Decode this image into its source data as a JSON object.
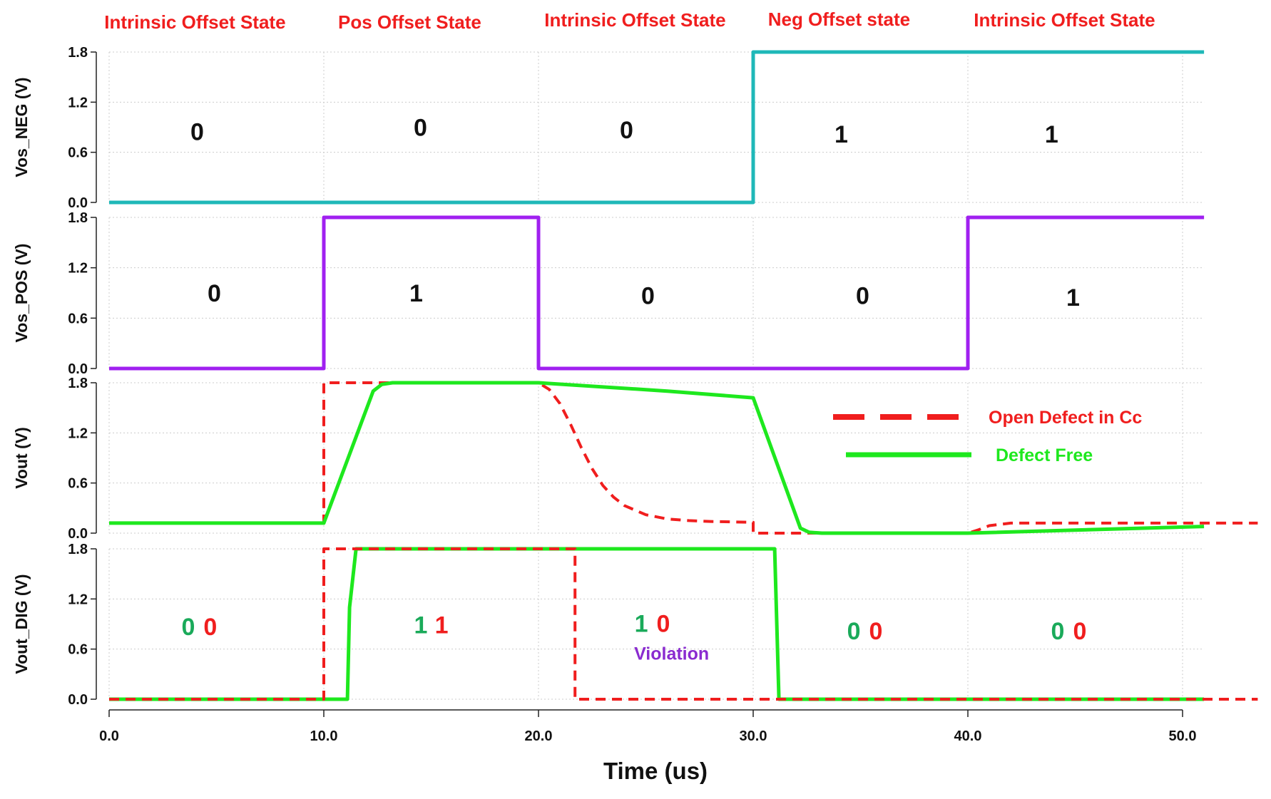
{
  "colors": {
    "vos_neg": "#1FB8B8",
    "vos_pos": "#A020F0",
    "defect_free": "#1EE81E",
    "open_defect": "#F01E1E",
    "state_label": "#F01E1E",
    "violation": "#8A2BD0",
    "digit_green": "#1AAA5A",
    "digit_red": "#F01E1E",
    "grid": "#cccccc"
  },
  "chart_data": {
    "type": "line",
    "xlabel": "Time (us)",
    "xlim": [
      0,
      51
    ],
    "x_ticks": [
      "0.0",
      "10.0",
      "20.0",
      "30.0",
      "40.0",
      "50.0"
    ],
    "x_tick_values": [
      0,
      10,
      20,
      30,
      40,
      50
    ],
    "state_labels": [
      {
        "text": "Intrinsic Offset State",
        "x": 4
      },
      {
        "text": "Pos Offset State",
        "x": 14
      },
      {
        "text": "Intrinsic Offset State",
        "x": 24.5
      },
      {
        "text": "Neg Offset state",
        "x": 34
      },
      {
        "text": "Intrinsic Offset State",
        "x": 44.5
      }
    ],
    "panels": [
      {
        "id": "vos_neg",
        "ylabel": "Vos_NEG (V)",
        "ylim": [
          0,
          1.8
        ],
        "y_ticks": [
          "0.0",
          "0.6",
          "1.2",
          "1.8"
        ],
        "y_tick_values": [
          0,
          0.6,
          1.2,
          1.8
        ],
        "series": [
          {
            "key": "vos_neg",
            "x": [
              0,
              30,
              30,
              51
            ],
            "y": [
              0,
              0,
              1.8,
              1.8
            ]
          }
        ],
        "annotations": [
          {
            "text": "0",
            "x": 4.1,
            "y": 0.85
          },
          {
            "text": "0",
            "x": 14.5,
            "y": 0.9
          },
          {
            "text": "0",
            "x": 24.1,
            "y": 0.87
          },
          {
            "text": "1",
            "x": 34.1,
            "y": 0.82
          },
          {
            "text": "1",
            "x": 43.9,
            "y": 0.82
          }
        ]
      },
      {
        "id": "vos_pos",
        "ylabel": "Vos_POS (V)",
        "ylim": [
          0,
          1.8
        ],
        "y_ticks": [
          "0.0",
          "0.6",
          "1.2",
          "1.8"
        ],
        "y_tick_values": [
          0,
          0.6,
          1.2,
          1.8
        ],
        "series": [
          {
            "key": "vos_pos",
            "x": [
              0,
              10,
              10,
              20,
              20,
              40,
              40,
              51
            ],
            "y": [
              0,
              0,
              1.8,
              1.8,
              0,
              0,
              1.8,
              1.8
            ]
          }
        ],
        "annotations": [
          {
            "text": "0",
            "x": 4.9,
            "y": 0.9
          },
          {
            "text": "1",
            "x": 14.3,
            "y": 0.9
          },
          {
            "text": "0",
            "x": 25.1,
            "y": 0.87
          },
          {
            "text": "0",
            "x": 35.1,
            "y": 0.87
          },
          {
            "text": "1",
            "x": 44.9,
            "y": 0.85
          }
        ]
      },
      {
        "id": "vout",
        "ylabel": "Vout (V)",
        "ylim": [
          0,
          1.8
        ],
        "y_ticks": [
          "0.0",
          "0.6",
          "1.2",
          "1.8"
        ],
        "y_tick_values": [
          0,
          0.6,
          1.2,
          1.8
        ],
        "series": [
          {
            "key": "open_defect",
            "name": "Open Defect in Cc",
            "dashed": true,
            "x": [
              0,
              10,
              10,
              20,
              20.5,
              21,
              21.5,
              22,
              22.5,
              23,
              23.5,
              24,
              25,
              26,
              27,
              28,
              30,
              30,
              40,
              40.5,
              41,
              42,
              53.5
            ],
            "y": [
              0.12,
              0.12,
              1.8,
              1.8,
              1.72,
              1.55,
              1.3,
              1.02,
              0.77,
              0.57,
              0.43,
              0.33,
              0.22,
              0.17,
              0.15,
              0.14,
              0.13,
              0,
              0,
              0.04,
              0.09,
              0.12,
              0.12
            ]
          },
          {
            "key": "defect_free",
            "name": "Defect Free",
            "dashed": false,
            "x": [
              0,
              10,
              12.3,
              12.7,
              13.2,
              20,
              26,
              30,
              32.2,
              32.6,
              33.2,
              40,
              51
            ],
            "y": [
              0.12,
              0.12,
              1.7,
              1.78,
              1.8,
              1.8,
              1.7,
              1.62,
              0.06,
              0.01,
              0,
              0,
              0.08
            ]
          }
        ],
        "legend_position": "right"
      },
      {
        "id": "vout_dig",
        "ylabel": "Vout_DIG (V)",
        "ylim": [
          0,
          1.8
        ],
        "y_ticks": [
          "0.0",
          "0.6",
          "1.2",
          "1.8"
        ],
        "y_tick_values": [
          0,
          0.6,
          1.2,
          1.8
        ],
        "series": [
          {
            "key": "defect_free",
            "dashed": false,
            "x": [
              0,
              11.1,
              11.2,
              11.5,
              31.0,
              31.1,
              31.2,
              51
            ],
            "y": [
              0,
              0,
              1.1,
              1.8,
              1.8,
              0.9,
              0,
              0
            ]
          },
          {
            "key": "open_defect",
            "dashed": true,
            "x": [
              0,
              10,
              10,
              21.7,
              21.7,
              53.5
            ],
            "y": [
              0,
              0,
              1.8,
              1.8,
              0,
              0
            ]
          }
        ],
        "digit_pairs": [
          {
            "green": "0",
            "red": "0",
            "x": 4.2,
            "y": 0.87
          },
          {
            "green": "1",
            "red": "1",
            "x": 15.0,
            "y": 0.89
          },
          {
            "green": "1",
            "red": "0",
            "x": 25.3,
            "y": 0.91
          },
          {
            "green": "0",
            "red": "0",
            "x": 35.2,
            "y": 0.82
          },
          {
            "green": "0",
            "red": "0",
            "x": 44.7,
            "y": 0.82
          }
        ],
        "violation": {
          "text": "Violation",
          "x": 26.2,
          "y": 0.55
        }
      }
    ],
    "legend": [
      {
        "key": "open_defect",
        "label": "Open Defect in Cc",
        "dashed": true
      },
      {
        "key": "defect_free",
        "label": "Defect Free",
        "dashed": false
      }
    ]
  }
}
